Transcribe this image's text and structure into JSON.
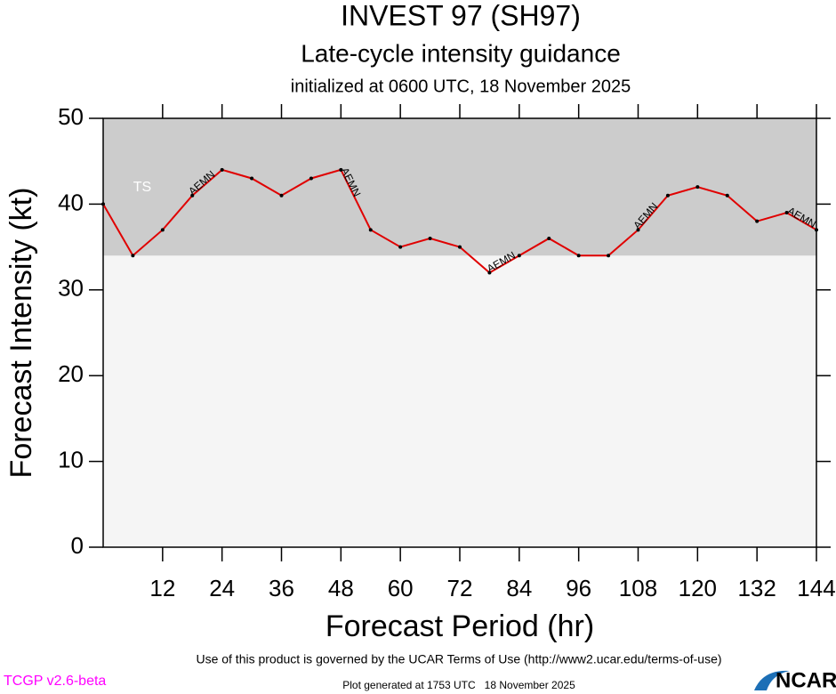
{
  "chart_data": {
    "type": "line",
    "title": "INVEST 97 (SH97)",
    "subtitle": "Late-cycle intensity guidance",
    "initialized": "initialized at 0600 UTC, 18 November 2025",
    "x_label": "Forecast Period (hr)",
    "y_label": "Forecast Intensity (kt)",
    "x": [
      0,
      6,
      12,
      18,
      24,
      30,
      36,
      42,
      48,
      54,
      60,
      66,
      72,
      78,
      84,
      90,
      96,
      102,
      108,
      114,
      120,
      126,
      132,
      138,
      144
    ],
    "series": [
      {
        "name": "AEMN",
        "color": "#e00000",
        "values": [
          40,
          34,
          37,
          41,
          44,
          43,
          41,
          43,
          44,
          37,
          35,
          36,
          35,
          32,
          34,
          36,
          34,
          34,
          37,
          41,
          42,
          41,
          38,
          39,
          37
        ]
      }
    ],
    "xlim": [
      0,
      144
    ],
    "xticks": [
      12,
      24,
      36,
      48,
      60,
      72,
      84,
      96,
      108,
      120,
      132,
      144
    ],
    "ylim": [
      0,
      50
    ],
    "yticks": [
      0,
      10,
      20,
      30,
      40,
      50
    ],
    "band": {
      "label": "TS",
      "from": 34,
      "color": "#cccccc"
    },
    "background": "#f5f5f5",
    "footer": {
      "terms": "Use of this product is governed by the UCAR Terms of Use (http://www2.ucar.edu/terms-of-use)",
      "version": "TCGP v2.6-beta",
      "generated": "Plot generated at 1753 UTC   18 November 2025",
      "logo": "NCAR"
    }
  }
}
